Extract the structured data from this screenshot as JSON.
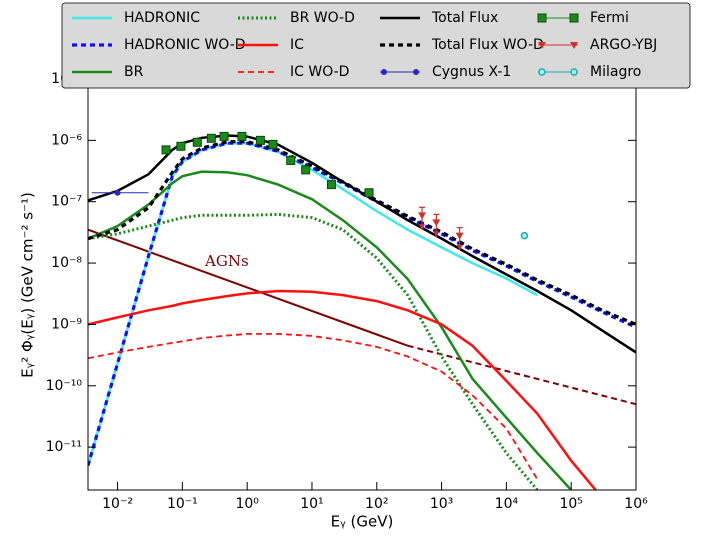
{
  "chart_data": {
    "type": "line",
    "xlabel": "Eᵧ (GeV)",
    "ylabel": "Eᵧ² Φᵧ(Eᵧ) (GeV cm⁻² s⁻¹)",
    "xscale": "log",
    "yscale": "log",
    "xlim": [
      0.0035,
      1000000
    ],
    "ylim": [
      2e-12,
      1e-05
    ],
    "xticks": [
      {
        "value": 0.01,
        "label": "10⁻²"
      },
      {
        "value": 0.1,
        "label": "10⁻¹"
      },
      {
        "value": 1,
        "label": "10⁰"
      },
      {
        "value": 10,
        "label": "10¹"
      },
      {
        "value": 100,
        "label": "10²"
      },
      {
        "value": 1000,
        "label": "10³"
      },
      {
        "value": 10000,
        "label": "10⁴"
      },
      {
        "value": 100000,
        "label": "10⁵"
      },
      {
        "value": 1000000,
        "label": "10⁶"
      }
    ],
    "yticks": [
      {
        "value": 1e-11,
        "label": "10⁻¹¹"
      },
      {
        "value": 1e-10,
        "label": "10⁻¹⁰"
      },
      {
        "value": 1e-09,
        "label": "10⁻⁹"
      },
      {
        "value": 1e-08,
        "label": "10⁻⁸"
      },
      {
        "value": 1e-07,
        "label": "10⁻⁷"
      },
      {
        "value": 1e-06,
        "label": "10⁻⁶"
      },
      {
        "value": 1e-05,
        "label": "10⁻⁵"
      }
    ],
    "legend": "top",
    "x": [
      0.0035,
      0.01,
      0.03,
      0.07,
      0.1,
      0.2,
      0.5,
      1,
      3,
      10,
      30,
      100,
      300,
      1000,
      3000,
      10000,
      30000,
      100000,
      300000,
      1000000
    ],
    "series": [
      {
        "name": "HADRONIC",
        "kind": "line",
        "style": "solid",
        "color": "#40e8e8",
        "values": [
          5e-12,
          2.3e-10,
          1.3e-08,
          2.6e-07,
          4.5e-07,
          7e-07,
          9e-07,
          9e-07,
          6.5e-07,
          3.3e-07,
          1.6e-07,
          7e-08,
          3.5e-08,
          1.8e-08,
          1e-08,
          5.6e-09,
          3e-09,
          null,
          null,
          null
        ]
      },
      {
        "name": "HADRONIC WO-D",
        "kind": "line",
        "style": "dashed",
        "color": "#1010ff",
        "values": [
          5e-12,
          2.3e-10,
          1.3e-08,
          2.6e-07,
          4.5e-07,
          7e-07,
          9e-07,
          9e-07,
          6.6e-07,
          3.6e-07,
          2e-07,
          1e-07,
          5.5e-08,
          3e-08,
          1.6e-08,
          9e-09,
          5e-09,
          2.8e-09,
          1.6e-09,
          9e-10
        ]
      },
      {
        "name": "BR",
        "kind": "line",
        "style": "solid",
        "color": "#1a8a1a",
        "values": [
          2.5e-08,
          4e-08,
          9e-08,
          2e-07,
          2.6e-07,
          3.1e-07,
          3e-07,
          2.7e-07,
          1.9e-07,
          1.1e-07,
          5e-08,
          1.8e-08,
          5.5e-09,
          9e-10,
          1.3e-10,
          3e-11,
          8e-12,
          2e-12,
          null,
          null
        ]
      },
      {
        "name": "BR WO-D",
        "kind": "line",
        "style": "dotted",
        "color": "#1a8a1a",
        "values": [
          2.5e-08,
          3e-08,
          4e-08,
          5e-08,
          5.5e-08,
          6e-08,
          6e-08,
          6e-08,
          6.2e-08,
          5.5e-08,
          3.5e-08,
          1.2e-08,
          3e-09,
          3e-10,
          5e-11,
          8e-12,
          2e-12,
          null,
          null,
          null
        ]
      },
      {
        "name": "IC",
        "kind": "line",
        "style": "solid",
        "color": "#ff1010",
        "values": [
          1e-09,
          1.3e-09,
          1.7e-09,
          2e-09,
          2.2e-09,
          2.5e-09,
          2.9e-09,
          3.2e-09,
          3.5e-09,
          3.4e-09,
          3e-09,
          2.4e-09,
          1.7e-09,
          1e-09,
          4.5e-10,
          1.2e-10,
          3.5e-11,
          6e-12,
          1.5e-12,
          null
        ]
      },
      {
        "name": "IC WO-D",
        "kind": "line",
        "style": "dashed-thin",
        "color": "#ff1010",
        "values": [
          2.8e-10,
          3.5e-10,
          4.3e-10,
          5e-10,
          5.3e-10,
          6e-10,
          6.6e-10,
          7e-10,
          7e-10,
          6.5e-10,
          5.5e-10,
          4.3e-10,
          3e-10,
          1.7e-10,
          7e-11,
          2e-11,
          3e-12,
          null,
          null,
          null
        ]
      },
      {
        "name": "Total Flux",
        "kind": "line",
        "style": "solid",
        "color": "#000000",
        "values": [
          1.05e-07,
          1.5e-07,
          2.8e-07,
          7e-07,
          9e-07,
          1.1e-06,
          1.2e-06,
          1.15e-06,
          8.5e-07,
          4.3e-07,
          2.1e-07,
          1e-07,
          5e-08,
          2.5e-08,
          1.3e-08,
          6.5e-09,
          3.5e-09,
          1.7e-09,
          8e-10,
          3.5e-10
        ]
      },
      {
        "name": "Total Flux WO-D",
        "kind": "line",
        "style": "dashed",
        "color": "#000000",
        "values": [
          2.5e-08,
          3.5e-08,
          8e-08,
          3e-07,
          5e-07,
          7.5e-07,
          9.5e-07,
          9.5e-07,
          7e-07,
          3.8e-07,
          2.1e-07,
          1.05e-07,
          5.8e-08,
          3.2e-08,
          1.7e-08,
          9.5e-09,
          5.3e-09,
          3e-09,
          1.7e-09,
          1e-09
        ]
      },
      {
        "name": "Cygnus X-1",
        "kind": "points",
        "marker": "circle",
        "color": "#2a2ab8",
        "x": [
          0.01
        ],
        "x_low": [
          0.004
        ],
        "x_high": [
          0.03
        ],
        "values": [
          1.4e-07
        ]
      },
      {
        "name": "Fermi",
        "kind": "points",
        "marker": "square",
        "color": "#1a8a1a",
        "x": [
          0.056,
          0.095,
          0.17,
          0.28,
          0.44,
          0.83,
          1.6,
          2.5,
          4.7,
          8,
          20,
          76
        ],
        "values": [
          7e-07,
          8e-07,
          9.3e-07,
          1.08e-06,
          1.16e-06,
          1.16e-06,
          1e-06,
          8.6e-07,
          4.7e-07,
          3.3e-07,
          1.9e-07,
          1.4e-07
        ]
      },
      {
        "name": "ARGO-YBJ",
        "kind": "points",
        "marker": "triangle_down",
        "upper_limit": true,
        "color": "#d03030",
        "x": [
          500,
          830,
          1900
        ],
        "values": [
          6e-08,
          4.6e-08,
          2.8e-08
        ]
      },
      {
        "name": "Milagro",
        "kind": "points",
        "marker": "circle_open",
        "color": "#20a8a8",
        "x": [
          19000
        ],
        "values": [
          2.8e-08
        ]
      }
    ],
    "agn": {
      "label": "AGNs",
      "color": "#800000",
      "segments": [
        {
          "style": "solid",
          "x": [
            0.0035,
            300
          ],
          "values": [
            3.5e-08,
            4.5e-10
          ]
        },
        {
          "style": "dashed",
          "x": [
            300,
            1000000
          ],
          "values": [
            4.5e-10,
            5e-11
          ]
        }
      ]
    }
  }
}
